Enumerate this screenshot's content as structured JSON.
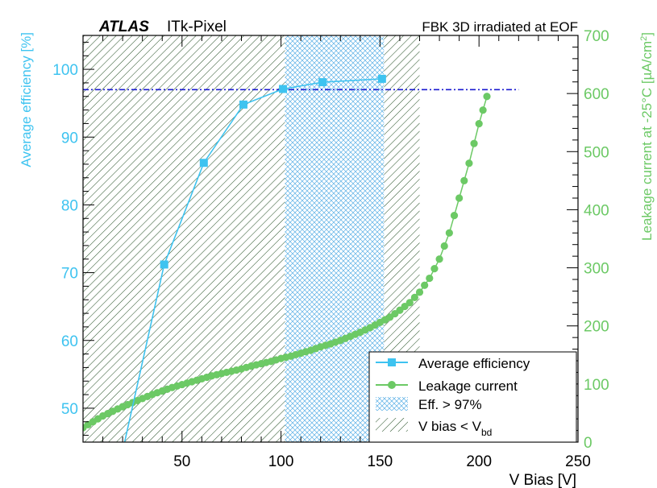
{
  "chart_data": {
    "type": "line",
    "header": {
      "brand": "ATLAS",
      "subtitle": "ITk-Pixel",
      "title": "FBK 3D irradiated at EOF"
    },
    "xlabel": "V Bias [V]",
    "xlim": [
      0,
      250
    ],
    "x_ticks": [
      50,
      100,
      150,
      200,
      250
    ],
    "y_left": {
      "label": "Average efficiency [%]",
      "lim": [
        45,
        105
      ],
      "ticks": [
        50,
        60,
        70,
        80,
        90,
        100
      ],
      "color": "#3ec3f0"
    },
    "y_right": {
      "label_main": "Leakage current at -25°C [µA/cm",
      "label_sup": "2",
      "label_end": "]",
      "lim": [
        0,
        700
      ],
      "ticks": [
        0,
        100,
        200,
        300,
        400,
        500,
        600,
        700
      ],
      "color": "#6cc965"
    },
    "threshold_line": {
      "y": 97,
      "x_start": 0,
      "x_end": 220,
      "color": "#1a1ad0"
    },
    "regions": [
      {
        "name": "V bias < V_bd",
        "x_start": 0,
        "x_end": 170,
        "color": "#1e4a1e"
      },
      {
        "name": "Eff. > 97%",
        "x_start": 102,
        "x_end": 152,
        "color": "#5bb0e6"
      }
    ],
    "series": [
      {
        "name": "Average efficiency",
        "axis": "left",
        "color": "#3ec3f0",
        "marker": "square",
        "x": [
          21,
          41,
          61,
          81,
          101,
          121,
          151
        ],
        "y": [
          45,
          71.2,
          86.2,
          94.8,
          97.1,
          98.1,
          98.6
        ]
      },
      {
        "name": "Leakage current",
        "axis": "right",
        "color": "#6cc965",
        "marker": "circle",
        "x": [
          0,
          5,
          10,
          15,
          20,
          25,
          30,
          35,
          40,
          45,
          50,
          55,
          60,
          65,
          70,
          75,
          80,
          85,
          90,
          95,
          100,
          105,
          110,
          115,
          120,
          125,
          130,
          135,
          140,
          145,
          150,
          155,
          160,
          165,
          170,
          175,
          180,
          185,
          190,
          195,
          200,
          204
        ],
        "y": [
          25,
          35,
          45,
          53,
          61,
          68,
          75,
          82,
          88,
          94,
          99,
          104,
          109,
          114,
          118,
          122,
          126,
          131,
          135,
          139,
          144,
          148,
          153,
          158,
          164,
          169,
          175,
          182,
          189,
          197,
          206,
          215,
          227,
          240,
          258,
          282,
          315,
          360,
          420,
          480,
          548,
          595
        ]
      }
    ],
    "legend": {
      "position": "bottom-right",
      "entries": [
        "Average efficiency",
        "Leakage current",
        "Eff. > 97%",
        "V bias < V",
        "bd"
      ]
    }
  }
}
